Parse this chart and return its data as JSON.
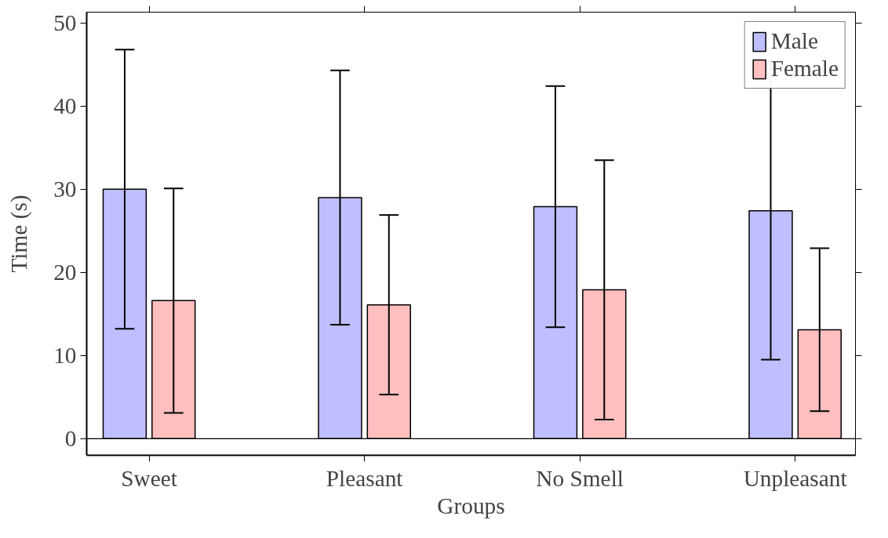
{
  "chart_data": {
    "type": "bar",
    "xlabel": "Groups",
    "ylabel": "Time (s)",
    "categories": [
      "Sweet",
      "Pleasant",
      "No Smell",
      "Unpleasant"
    ],
    "series": [
      {
        "name": "Male",
        "color": "#bfbfff",
        "values": [
          30.0,
          29.0,
          27.9,
          27.4
        ],
        "errors": [
          16.8,
          15.3,
          14.5,
          17.9
        ]
      },
      {
        "name": "Female",
        "color": "#ffbfbf",
        "values": [
          16.6,
          16.1,
          17.9,
          13.1
        ],
        "errors": [
          13.5,
          10.8,
          15.6,
          9.8
        ]
      }
    ],
    "ylim": [
      -2,
      51.3
    ],
    "yticks": [
      0,
      10,
      20,
      30,
      40,
      50
    ],
    "ref_lines": [
      {
        "axis": "y",
        "value": 0,
        "label": null
      }
    ],
    "legend": "top right",
    "grid": false
  }
}
